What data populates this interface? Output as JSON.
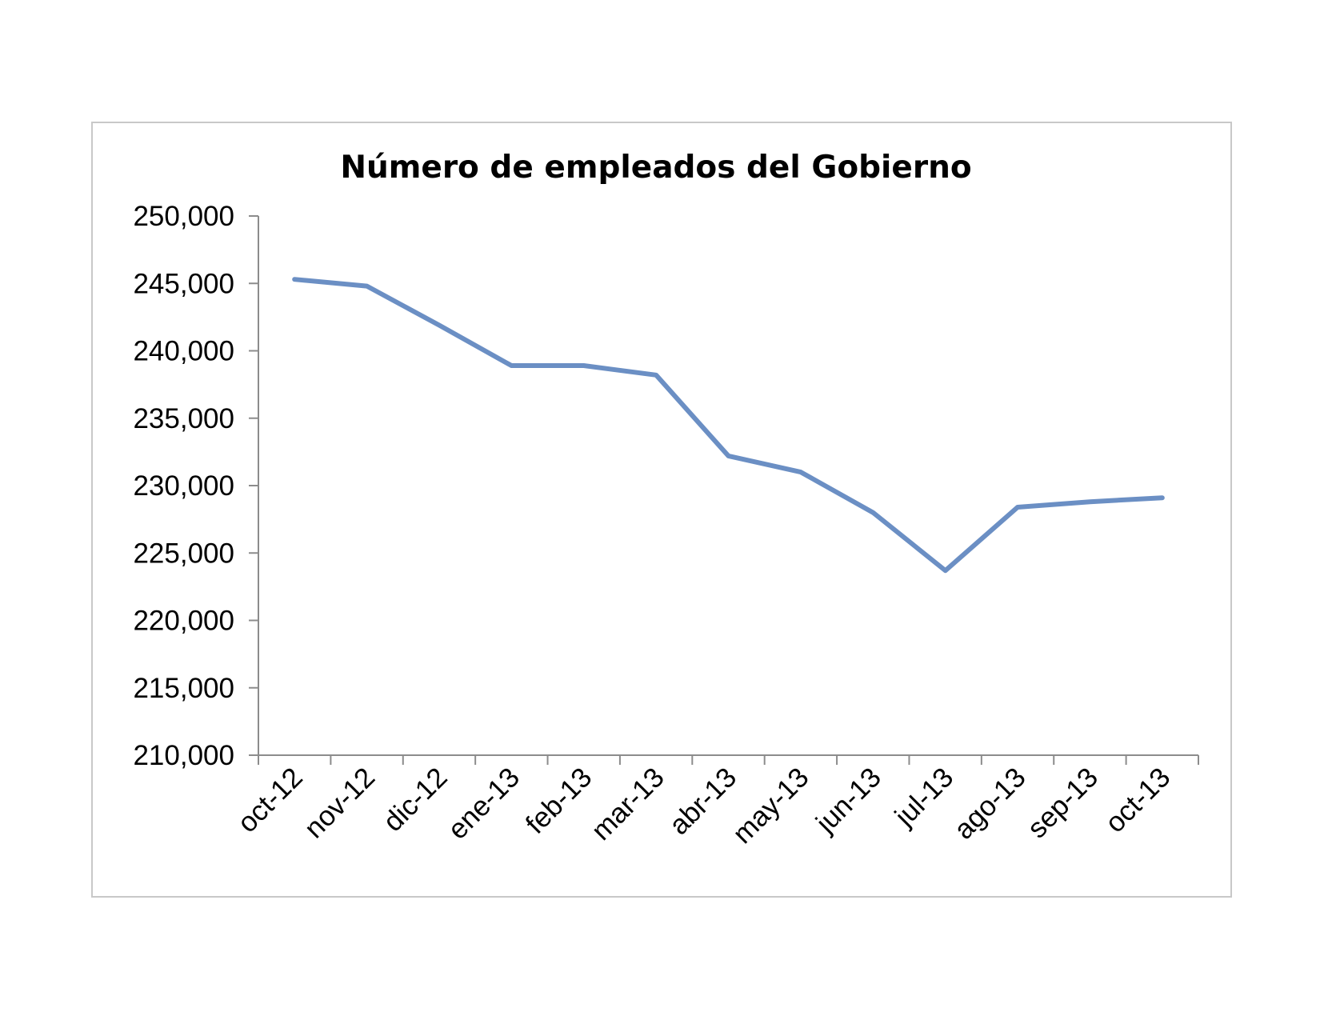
{
  "chart_data": {
    "type": "line",
    "title": "Número de empleados del Gobierno",
    "xlabel": "",
    "ylabel": "",
    "ylim": [
      210000,
      250000
    ],
    "yticks": [
      "210,000",
      "215,000",
      "220,000",
      "225,000",
      "230,000",
      "235,000",
      "240,000",
      "245,000",
      "250,000"
    ],
    "ytick_values": [
      210000,
      215000,
      220000,
      225000,
      230000,
      235000,
      240000,
      245000,
      250000
    ],
    "categories": [
      "oct-12",
      "nov-12",
      "dic-12",
      "ene-13",
      "feb-13",
      "mar-13",
      "abr-13",
      "may-13",
      "jun-13",
      "jul-13",
      "ago-13",
      "sep-13",
      "oct-13"
    ],
    "series": [
      {
        "values": [
          245300,
          244800,
          241900,
          238900,
          238900,
          238200,
          232200,
          231000,
          228000,
          223700,
          228400,
          228800,
          229100
        ],
        "color": "#6b8fc4"
      }
    ],
    "grid": false,
    "legend": "none",
    "frame_color": "#c8c8c8",
    "axis_color": "#8c8c8c"
  }
}
